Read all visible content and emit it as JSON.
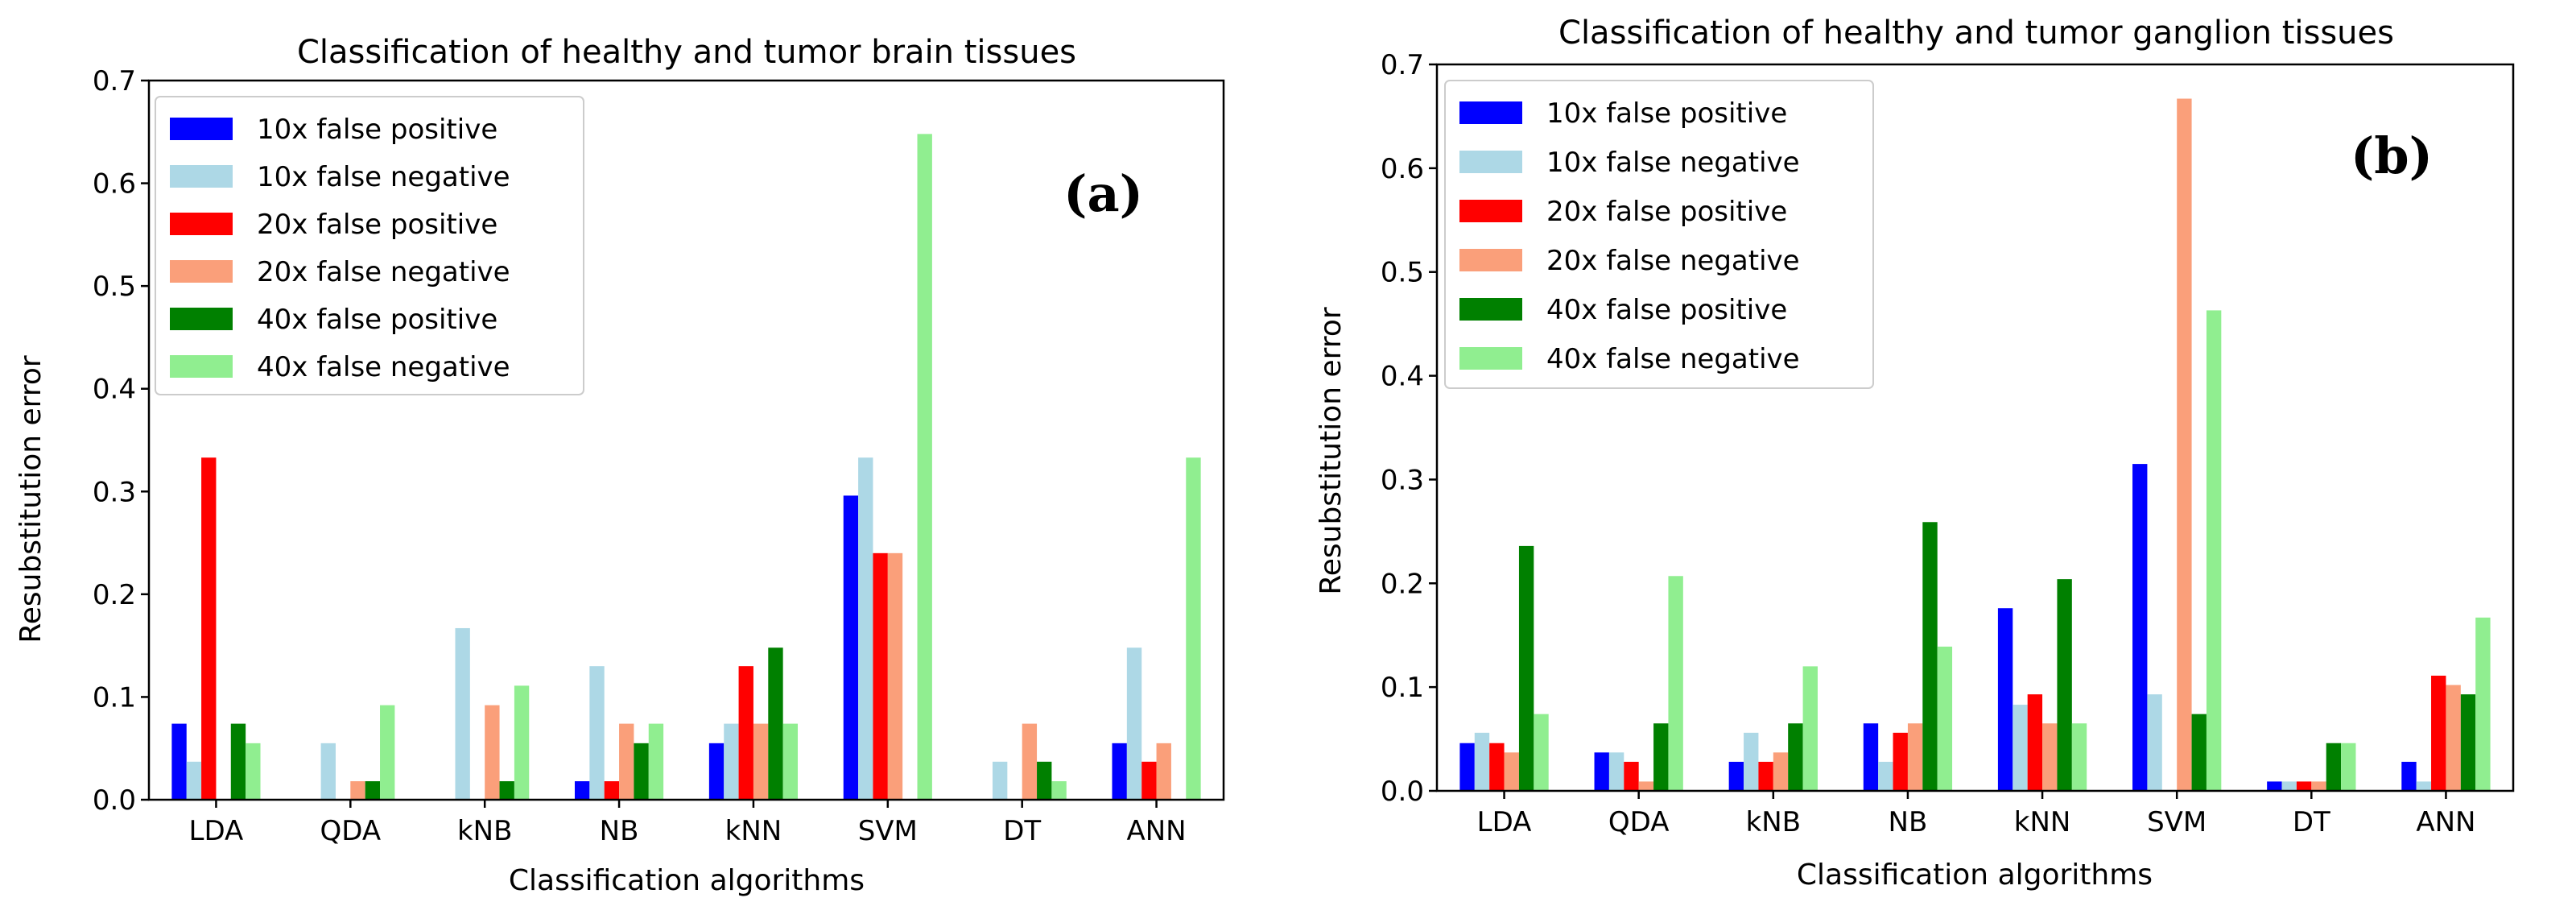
{
  "chart_data": [
    {
      "type": "bar",
      "panel_label": "(a)",
      "title": "Classification of healthy and tumor brain tissues",
      "xlabel": "Classification algorithms",
      "ylabel": "Resubstitution error",
      "ylim": [
        0,
        0.7
      ],
      "yticks": [
        0.0,
        0.1,
        0.2,
        0.3,
        0.4,
        0.5,
        0.6,
        0.7
      ],
      "ytick_labels": [
        "0.0",
        "0.1",
        "0.2",
        "0.3",
        "0.4",
        "0.5",
        "0.6",
        "0.7"
      ],
      "legend_position": "top-left",
      "categories": [
        "LDA",
        "QDA",
        "kNB",
        "NB",
        "kNN",
        "SVM",
        "DT",
        "ANN"
      ],
      "series": [
        {
          "name": "10x false positive",
          "color": "#0000ff",
          "values": [
            0.074,
            0.0,
            0.0,
            0.018,
            0.055,
            0.296,
            0.0,
            0.055
          ]
        },
        {
          "name": "10x false negative",
          "color": "#add8e6",
          "values": [
            0.037,
            0.055,
            0.167,
            0.13,
            0.074,
            0.333,
            0.037,
            0.148
          ]
        },
        {
          "name": "20x false positive",
          "color": "#ff0000",
          "values": [
            0.333,
            0.0,
            0.0,
            0.018,
            0.13,
            0.24,
            0.0,
            0.037
          ]
        },
        {
          "name": "20x false negative",
          "color": "#fa9f7a",
          "values": [
            0.0,
            0.018,
            0.092,
            0.074,
            0.074,
            0.24,
            0.074,
            0.055
          ]
        },
        {
          "name": "40x false positive",
          "color": "#008000",
          "values": [
            0.074,
            0.018,
            0.018,
            0.055,
            0.148,
            0.0,
            0.037,
            0.0
          ]
        },
        {
          "name": "40x false negative",
          "color": "#90ee90",
          "values": [
            0.055,
            0.092,
            0.111,
            0.074,
            0.074,
            0.648,
            0.018,
            0.333
          ]
        }
      ]
    },
    {
      "type": "bar",
      "panel_label": "(b)",
      "title": "Classification of healthy and tumor ganglion tissues",
      "xlabel": "Classification algorithms",
      "ylabel": "Resubstitution error",
      "ylim": [
        0,
        0.7
      ],
      "yticks": [
        0.0,
        0.1,
        0.2,
        0.3,
        0.4,
        0.5,
        0.6,
        0.7
      ],
      "ytick_labels": [
        "0.0",
        "0.1",
        "0.2",
        "0.3",
        "0.4",
        "0.5",
        "0.6",
        "0.7"
      ],
      "legend_position": "top-left",
      "categories": [
        "LDA",
        "QDA",
        "kNB",
        "NB",
        "kNN",
        "SVM",
        "DT",
        "ANN"
      ],
      "series": [
        {
          "name": "10x false positive",
          "color": "#0000ff",
          "values": [
            0.046,
            0.037,
            0.028,
            0.065,
            0.176,
            0.315,
            0.009,
            0.028
          ]
        },
        {
          "name": "10x false negative",
          "color": "#add8e6",
          "values": [
            0.056,
            0.037,
            0.056,
            0.028,
            0.083,
            0.093,
            0.009,
            0.009
          ]
        },
        {
          "name": "20x false positive",
          "color": "#ff0000",
          "values": [
            0.046,
            0.028,
            0.028,
            0.056,
            0.093,
            0.0,
            0.009,
            0.111
          ]
        },
        {
          "name": "20x false negative",
          "color": "#fa9f7a",
          "values": [
            0.037,
            0.009,
            0.037,
            0.065,
            0.065,
            0.667,
            0.009,
            0.102
          ]
        },
        {
          "name": "40x false positive",
          "color": "#008000",
          "values": [
            0.236,
            0.065,
            0.065,
            0.259,
            0.204,
            0.074,
            0.046,
            0.093
          ]
        },
        {
          "name": "40x false negative",
          "color": "#90ee90",
          "values": [
            0.074,
            0.207,
            0.12,
            0.139,
            0.065,
            0.463,
            0.046,
            0.167
          ]
        }
      ]
    }
  ]
}
